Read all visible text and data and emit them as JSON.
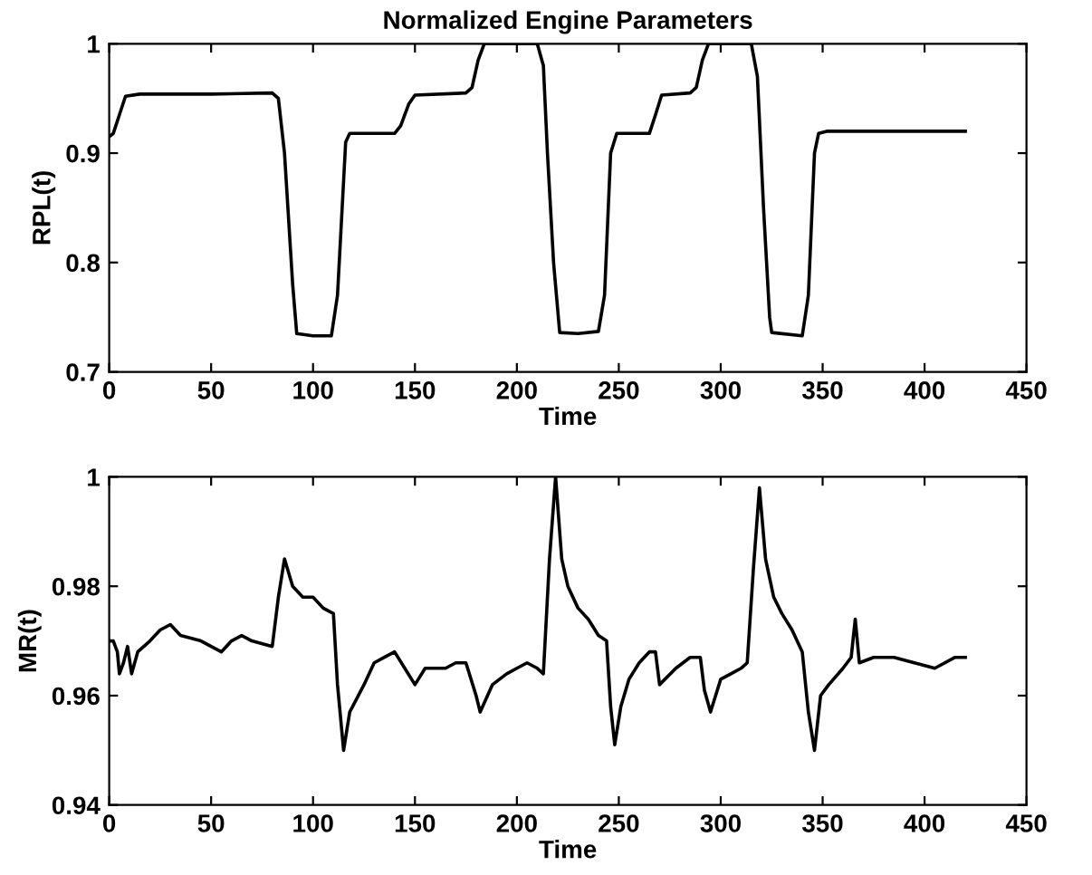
{
  "chart_data": [
    {
      "type": "line",
      "title": "Normalized Engine Parameters",
      "xlabel": "Time",
      "ylabel": "RPL(t)",
      "xlim": [
        0,
        450
      ],
      "xticks": [
        0,
        50,
        100,
        150,
        200,
        250,
        300,
        350,
        400,
        450
      ],
      "ylim": [
        0.7,
        1
      ],
      "yticks": [
        0.7,
        0.8,
        0.9,
        1
      ],
      "grid": false,
      "series": [
        {
          "color": "#000000",
          "x": [
            0,
            2,
            5,
            8,
            15,
            50,
            80,
            83,
            86,
            88,
            90,
            92,
            100,
            109,
            112,
            114,
            116,
            118,
            140,
            143,
            147,
            150,
            175,
            178,
            181,
            184,
            210,
            213,
            215,
            218,
            221,
            230,
            240,
            243,
            246,
            249,
            265,
            268,
            271,
            285,
            288,
            291,
            294,
            315,
            318,
            321,
            324,
            325,
            340,
            343,
            346,
            348,
            352,
            420
          ],
          "values": [
            0.915,
            0.918,
            0.935,
            0.952,
            0.954,
            0.954,
            0.955,
            0.95,
            0.9,
            0.84,
            0.78,
            0.735,
            0.733,
            0.733,
            0.77,
            0.84,
            0.91,
            0.918,
            0.918,
            0.925,
            0.945,
            0.953,
            0.955,
            0.96,
            0.985,
            1.0,
            1.0,
            0.98,
            0.9,
            0.8,
            0.736,
            0.735,
            0.737,
            0.77,
            0.9,
            0.918,
            0.918,
            0.935,
            0.953,
            0.955,
            0.96,
            0.985,
            1.0,
            1.0,
            0.97,
            0.85,
            0.75,
            0.736,
            0.733,
            0.77,
            0.9,
            0.918,
            0.92,
            0.92
          ]
        }
      ]
    },
    {
      "type": "line",
      "xlabel": "Time",
      "ylabel": "MR(t)",
      "xlim": [
        0,
        450
      ],
      "xticks": [
        0,
        50,
        100,
        150,
        200,
        250,
        300,
        350,
        400,
        450
      ],
      "ylim": [
        0.94,
        1
      ],
      "yticks": [
        0.94,
        0.96,
        0.98,
        1
      ],
      "grid": false,
      "series": [
        {
          "color": "#000000",
          "x": [
            0,
            2,
            4,
            5,
            7,
            9,
            11,
            14,
            20,
            25,
            30,
            35,
            45,
            55,
            60,
            65,
            70,
            80,
            83,
            86,
            90,
            95,
            100,
            105,
            110,
            112,
            115,
            118,
            125,
            130,
            135,
            140,
            145,
            150,
            155,
            165,
            170,
            175,
            180,
            182,
            188,
            195,
            200,
            205,
            210,
            213,
            216,
            219,
            222,
            225,
            230,
            235,
            240,
            244,
            246,
            248,
            251,
            255,
            260,
            265,
            268,
            270,
            278,
            285,
            290,
            292,
            295,
            300,
            305,
            310,
            313,
            316,
            319,
            322,
            326,
            330,
            335,
            340,
            343,
            346,
            349,
            353,
            360,
            364,
            366,
            368,
            375,
            385,
            395,
            405,
            415,
            420
          ],
          "values": [
            0.97,
            0.97,
            0.968,
            0.964,
            0.966,
            0.969,
            0.964,
            0.968,
            0.97,
            0.972,
            0.973,
            0.971,
            0.97,
            0.968,
            0.97,
            0.971,
            0.97,
            0.969,
            0.978,
            0.985,
            0.98,
            0.978,
            0.978,
            0.976,
            0.975,
            0.962,
            0.95,
            0.957,
            0.962,
            0.966,
            0.967,
            0.968,
            0.965,
            0.962,
            0.965,
            0.965,
            0.966,
            0.966,
            0.96,
            0.957,
            0.962,
            0.964,
            0.965,
            0.966,
            0.965,
            0.964,
            0.985,
            1.0,
            0.985,
            0.98,
            0.976,
            0.974,
            0.971,
            0.97,
            0.958,
            0.951,
            0.958,
            0.963,
            0.966,
            0.968,
            0.968,
            0.962,
            0.965,
            0.967,
            0.967,
            0.961,
            0.957,
            0.963,
            0.964,
            0.965,
            0.966,
            0.983,
            0.998,
            0.985,
            0.978,
            0.975,
            0.972,
            0.968,
            0.957,
            0.95,
            0.96,
            0.962,
            0.965,
            0.967,
            0.974,
            0.966,
            0.967,
            0.967,
            0.966,
            0.965,
            0.967,
            0.967
          ]
        }
      ]
    }
  ]
}
